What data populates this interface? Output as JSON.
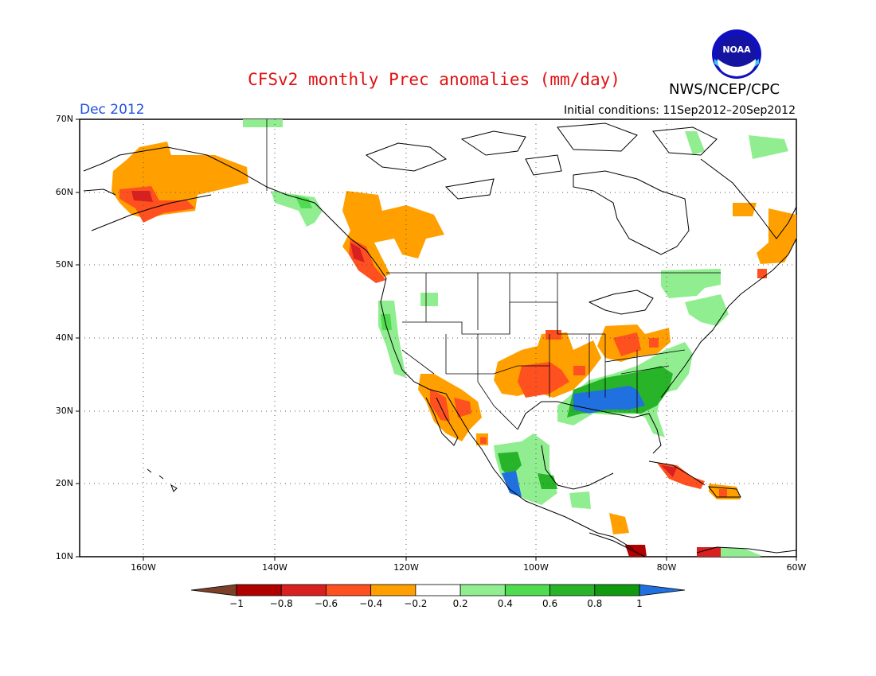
{
  "header": {
    "title": "CFSv2 monthly Prec anomalies (mm/day)",
    "agency": "NWS/NCEP/CPC",
    "logo_text": "NOAA",
    "month": "Dec 2012",
    "initial_conditions": "Initial conditions: 11Sep2012–20Sep2012"
  },
  "axes": {
    "lat_labels": [
      "70N",
      "60N",
      "50N",
      "40N",
      "30N",
      "20N",
      "10N"
    ],
    "lon_labels": [
      "160W",
      "140W",
      "120W",
      "100W",
      "80W",
      "60W"
    ]
  },
  "colorbar": {
    "labels": [
      "−1",
      "−0.8",
      "−0.6",
      "−0.4",
      "−0.2",
      "0.2",
      "0.4",
      "0.6",
      "0.8",
      "1"
    ],
    "colors": [
      "#7a4028",
      "#b00000",
      "#d82020",
      "#ff5020",
      "#ffa000",
      "#ffffff",
      "#90ee90",
      "#50dc50",
      "#28b428",
      "#109a10",
      "#2070e0"
    ]
  }
}
